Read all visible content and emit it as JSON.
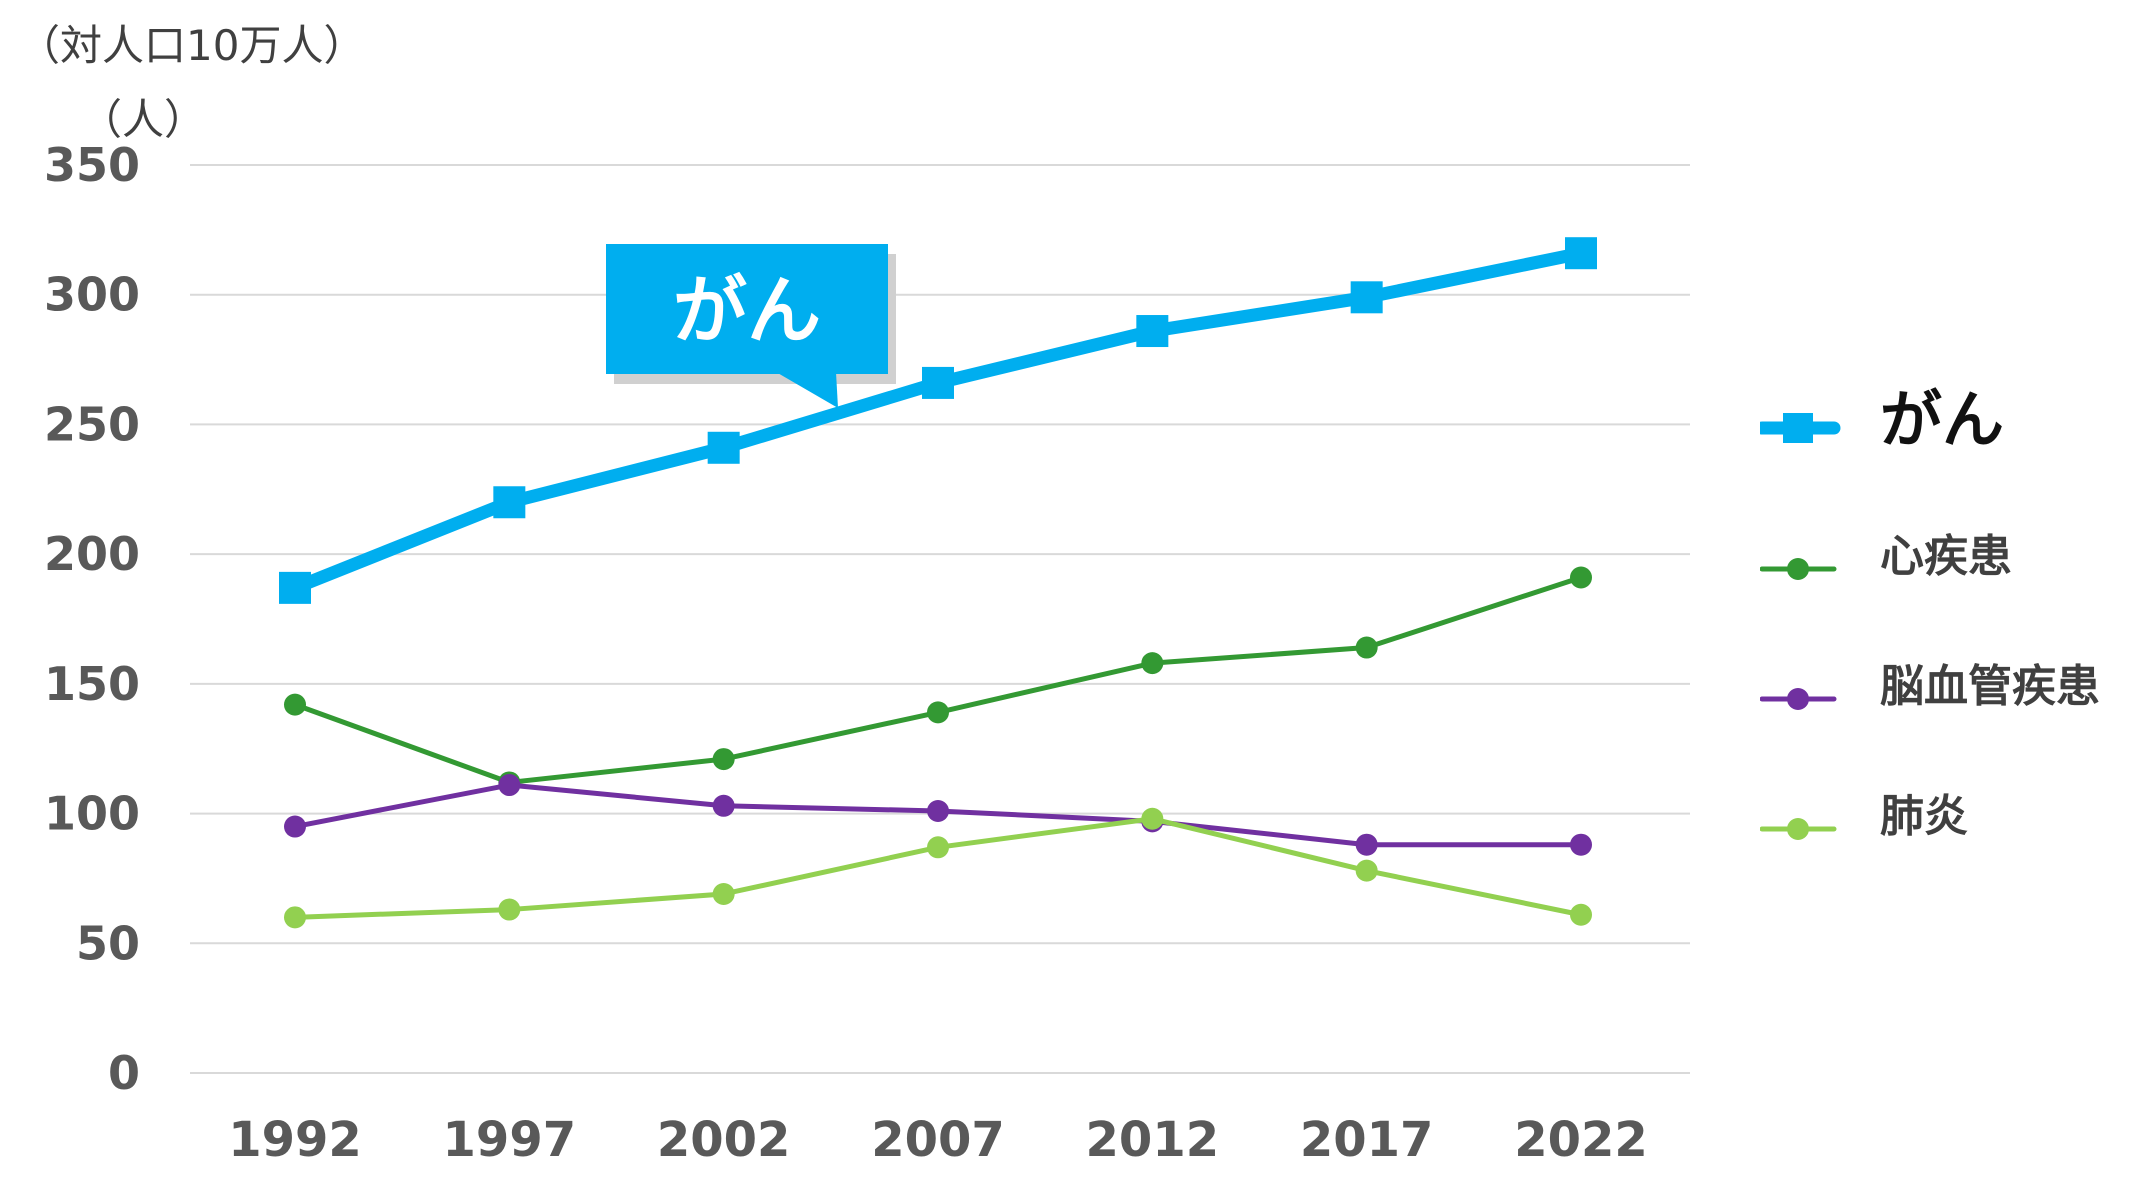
{
  "unit_label": {
    "line1": "（対人口10万人）",
    "line2": "（人）"
  },
  "colors": {
    "cancer": "#00AEEF",
    "heart": "#339933",
    "cerebro": "#7030A0",
    "pneumonia": "#92D050",
    "grid": "#d9d9d9",
    "axis_text": "#595959"
  },
  "callout": {
    "text": "がん",
    "series": "がん",
    "color": "#00AEEF"
  },
  "chart_data": {
    "type": "line",
    "categories": [
      "1992",
      "1997",
      "2002",
      "2007",
      "2012",
      "2017",
      "2022"
    ],
    "ylim": [
      0,
      350
    ],
    "yticks": [
      0,
      50,
      100,
      150,
      200,
      250,
      300,
      350
    ],
    "grid": true,
    "legend": "right",
    "series": [
      {
        "name": "がん",
        "values": [
          187,
          220,
          241,
          266,
          286,
          299,
          316
        ],
        "color": "#00AEEF",
        "marker": "square",
        "emphasis": true
      },
      {
        "name": "心疾患",
        "values": [
          142,
          112,
          121,
          139,
          158,
          164,
          191
        ],
        "color": "#339933",
        "marker": "circle"
      },
      {
        "name": "脳血管疾患",
        "values": [
          95,
          111,
          103,
          101,
          97,
          88,
          88
        ],
        "color": "#7030A0",
        "marker": "circle"
      },
      {
        "name": "肺炎",
        "values": [
          60,
          63,
          69,
          87,
          98,
          78,
          61
        ],
        "color": "#92D050",
        "marker": "circle"
      }
    ]
  }
}
